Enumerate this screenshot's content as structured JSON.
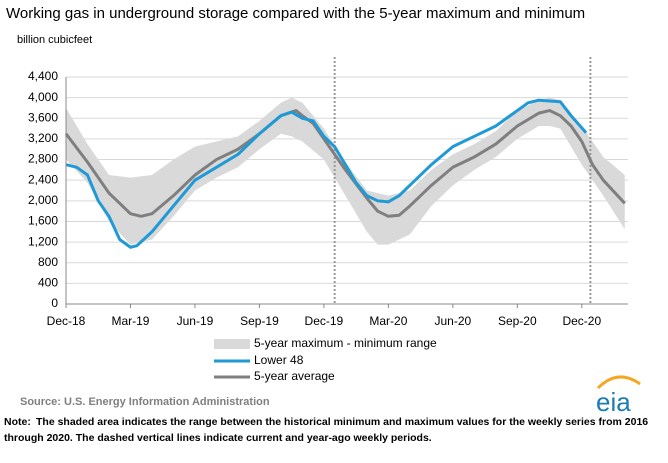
{
  "chart_data": {
    "type": "line",
    "title": "Working gas in underground  storage compared with the 5-year maximum and minimum",
    "y_label": "billion cubicfeet",
    "xlim": [
      0,
      26.15
    ],
    "xticks": [
      {
        "value": 0,
        "label": "Dec-18"
      },
      {
        "value": 3,
        "label": "Mar-19"
      },
      {
        "value": 6,
        "label": "Jun-19"
      },
      {
        "value": 9,
        "label": "Sep-19"
      },
      {
        "value": 12,
        "label": "Dec-19"
      },
      {
        "value": 15,
        "label": "Mar-20"
      },
      {
        "value": 18,
        "label": "Jun-20"
      },
      {
        "value": 21,
        "label": "Sep-20"
      },
      {
        "value": 24,
        "label": "Dec-20"
      }
    ],
    "ylim": [
      0,
      4400
    ],
    "yticks": [
      0,
      400,
      800,
      {
        "value": 1200,
        "label": "1,200"
      },
      {
        "value": 1600,
        "label": "1,600"
      },
      {
        "value": 2000,
        "label": "2,000"
      },
      {
        "value": 2400,
        "label": "2,400"
      },
      {
        "value": 2800,
        "label": "2,800"
      },
      {
        "value": 3200,
        "label": "3,200"
      },
      {
        "value": 3600,
        "label": "3,600"
      },
      {
        "value": 4000,
        "label": "4,000"
      },
      {
        "value": 4400,
        "label": "4,400"
      }
    ],
    "grid": true,
    "range": {
      "name": "5-year maximum - minimum range",
      "color": "#d9d9d9",
      "x": [
        0,
        1,
        2,
        3,
        4,
        5,
        6,
        7,
        8,
        9,
        10,
        10.5,
        11,
        12,
        13,
        14,
        14.5,
        15,
        16,
        17,
        18,
        19,
        20,
        21,
        22,
        22.5,
        23,
        24,
        25,
        26
      ],
      "max": [
        3800,
        3100,
        2500,
        2450,
        2500,
        2800,
        3050,
        3150,
        3250,
        3550,
        3900,
        4000,
        3900,
        3400,
        2750,
        2200,
        2150,
        2100,
        2200,
        2600,
        2900,
        3100,
        3350,
        3750,
        3950,
        4000,
        3950,
        3450,
        2850,
        2500
      ],
      "min": [
        2800,
        2350,
        1600,
        1150,
        1250,
        1700,
        2200,
        2450,
        2650,
        3000,
        3300,
        3250,
        3150,
        2800,
        2100,
        1400,
        1150,
        1150,
        1350,
        1900,
        2300,
        2600,
        2850,
        3200,
        3450,
        3450,
        3400,
        2700,
        2100,
        1450
      ]
    },
    "series": [
      {
        "name": "Lower 48",
        "color": "#1f9ad6",
        "x": [
          0,
          0.5,
          1,
          1.5,
          2,
          2.5,
          3,
          3.3,
          4,
          5,
          6,
          7,
          8,
          9,
          10,
          10.5,
          11,
          11.5,
          12,
          12.5,
          13,
          13.5,
          14,
          14.5,
          15,
          15.5,
          16,
          17,
          18,
          19,
          20,
          21,
          21.5,
          22,
          23,
          23.5,
          24.2
        ],
        "values": [
          2700,
          2650,
          2500,
          2000,
          1700,
          1250,
          1100,
          1130,
          1400,
          1900,
          2400,
          2650,
          2900,
          3300,
          3650,
          3720,
          3600,
          3550,
          3250,
          3050,
          2700,
          2350,
          2100,
          2000,
          1980,
          2100,
          2300,
          2700,
          3050,
          3250,
          3450,
          3750,
          3900,
          3950,
          3920,
          3650,
          3320
        ]
      },
      {
        "name": "5-year average",
        "color": "#7f7f7f",
        "x": [
          0,
          1,
          2,
          3,
          3.5,
          4,
          5,
          6,
          7,
          8,
          9,
          10,
          10.7,
          11,
          11.5,
          12,
          13,
          14,
          14.5,
          15,
          15.5,
          16,
          17,
          18,
          19,
          20,
          21,
          22,
          22.5,
          23,
          23.5,
          24,
          24.5,
          25,
          26
        ],
        "values": [
          3300,
          2750,
          2150,
          1750,
          1700,
          1750,
          2100,
          2500,
          2800,
          3000,
          3300,
          3650,
          3750,
          3650,
          3500,
          3200,
          2600,
          2050,
          1800,
          1700,
          1720,
          1900,
          2300,
          2650,
          2850,
          3100,
          3450,
          3700,
          3750,
          3650,
          3450,
          3150,
          2700,
          2400,
          1950
        ]
      }
    ],
    "dashed_lines": [
      12.5,
      24.4
    ],
    "source": "Source:  U.S. Energy Information Administration",
    "note_label": "Note:",
    "note_lines": [
      "The shaded area indicates the range between the historical minimum and maximum values for the weekly series from 2016",
      "through 2020. The dashed vertical lines indicate current and year-ago weekly periods."
    ],
    "logo": "eia"
  }
}
